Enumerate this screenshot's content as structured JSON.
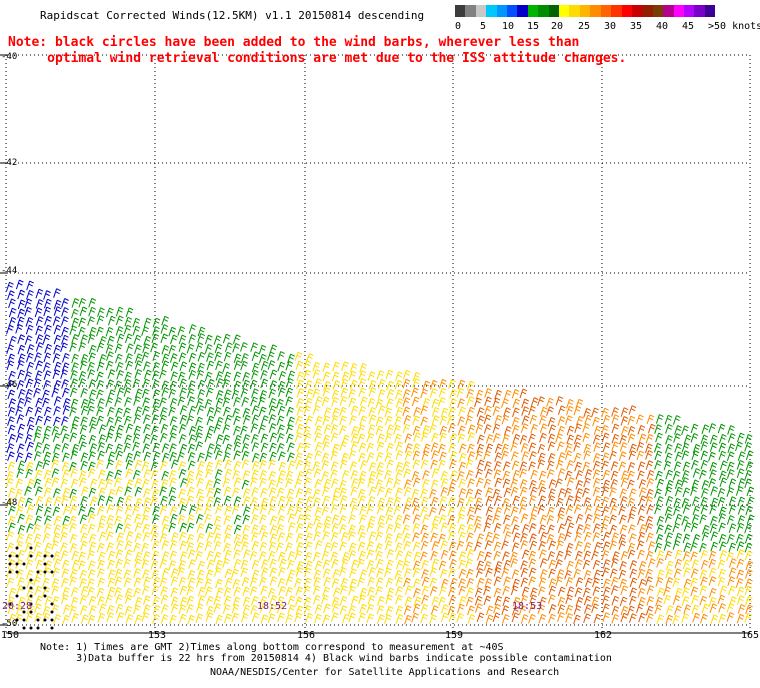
{
  "title": "Rapidscat Corrected Winds(12.5KM) v1.1 20150814 descending",
  "note_red_line1": "Note: black circles have been added to the wind barbs, wherever less than",
  "note_red_line2": "     optimal wind retrieval conditions are met due to the ISS attitude changes.",
  "legend": {
    "colors": [
      "#3c3c3c",
      "#828282",
      "#c8c8c8",
      "#00c8ff",
      "#0096ff",
      "#0050ff",
      "#0000c8",
      "#00b400",
      "#008c00",
      "#006400",
      "#ffff00",
      "#ffdc00",
      "#ffb400",
      "#ff8c00",
      "#ff6400",
      "#ff3200",
      "#ff0000",
      "#c80000",
      "#961e00",
      "#7a3c00",
      "#b4008c",
      "#ff00ff",
      "#b400ff",
      "#7800c8",
      "#3c0096"
    ],
    "labels": [
      "0",
      "5",
      "10",
      "15",
      "20",
      "25",
      "30",
      "35",
      "40",
      "45",
      ">50 knots"
    ]
  },
  "axes": {
    "lat_labels": [
      "-40",
      "-42",
      "-44",
      "-46",
      "-48",
      "-50"
    ],
    "lon_labels": [
      "150",
      "153",
      "156",
      "159",
      "162",
      "165"
    ]
  },
  "times": [
    "20:28",
    "18:52",
    "18:53"
  ],
  "footer_note": "Note: 1) Times are GMT 2)Times along bottom correspond to measurement at ~40S\n      3)Data buffer is 22 hrs from 20150814 4) Black wind barbs indicate possible contamination",
  "footer_credit": "NOAA/NESDIS/Center for Satellite Applications and Research",
  "colors": {
    "blue": "#0000c8",
    "green": "#009600",
    "yellow": "#ffdc00",
    "orange": "#ff8c00",
    "red_orange": "#e05a00",
    "note_red": "#ff0000",
    "time_label": "#7a1e8a"
  }
}
